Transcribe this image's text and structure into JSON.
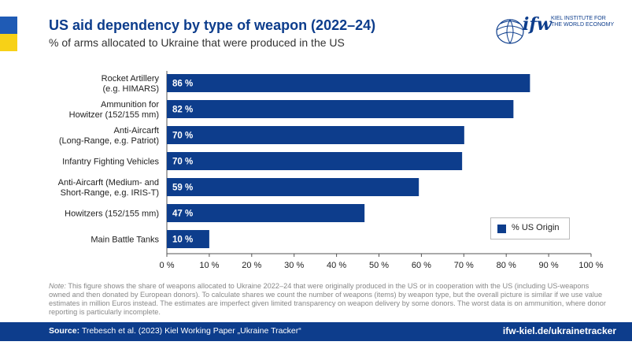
{
  "header": {
    "title": "US aid dependency by type of weapon (2022–24)",
    "subtitle": "% of arms allocated to Ukraine that were produced in the US",
    "logo_mark": "ifw",
    "logo_small_line1": "KIEL INSTITUTE FOR",
    "logo_small_line2": "THE WORLD ECONOMY"
  },
  "colors": {
    "bar": "#0d3d8c",
    "accent_blue": "#1f5bb5",
    "accent_yellow": "#f7d117"
  },
  "chart_data": {
    "type": "bar",
    "orientation": "horizontal",
    "categories": [
      [
        "Rocket Artillery",
        "(e.g. HIMARS)"
      ],
      [
        "Ammunition for",
        "Howitzer (152/155 mm)"
      ],
      [
        "Anti-Aircarft",
        "(Long-Range, e.g. Patriot)"
      ],
      [
        "Infantry Fighting Vehicles"
      ],
      [
        "Anti-Aircarft (Medium- and",
        "Short-Range, e.g. IRIS-T)"
      ],
      [
        "Howitzers (152/155 mm)"
      ],
      [
        "Main Battle Tanks"
      ]
    ],
    "values": [
      86,
      82,
      70,
      70,
      59,
      47,
      10
    ],
    "bar_lengths": [
      85.6,
      81.7,
      70.1,
      69.6,
      59.4,
      46.6,
      10.0
    ],
    "value_labels": [
      "86 %",
      "82 %",
      "70 %",
      "70 %",
      "59 %",
      "47 %",
      "10 %"
    ],
    "xlim": [
      0,
      100
    ],
    "xticks": [
      "0 %",
      "10 %",
      "20 %",
      "30 %",
      "40 %",
      "50 %",
      "60 %",
      "70 %",
      "80 %",
      "90 %",
      "100 %"
    ],
    "grid": false,
    "legend": {
      "label": "% US Origin",
      "position": "bottom-right"
    }
  },
  "note": {
    "prefix": "Note:",
    "text": " This figure shows the share of weapons allocated to Ukraine 2022–24 that were originally produced in the US or in cooperation with the US (including US-weapons owned and then donated by European donors). To calculate shares we count the number of weapons (items) by weapon type, but the overall picture is similar if we use value estimates in million Euros instead. The estimates are imperfect given limited transparency on weapon delivery by some donors. The worst data is on ammunition, where donor reporting is particularly incomplete."
  },
  "footer": {
    "source_label": "Source:",
    "source_text": " Trebesch et al. (2023) Kiel Working Paper „Ukraine Tracker“",
    "url": "ifw-kiel.de/ukrainetracker"
  }
}
